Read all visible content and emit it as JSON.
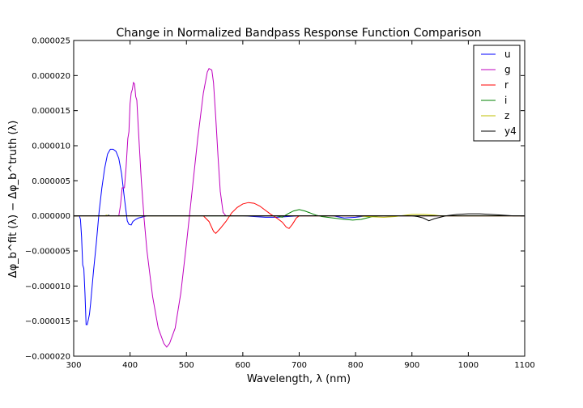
{
  "chart_data": {
    "type": "line",
    "title": "Change in Normalized Bandpass Response Function Comparison",
    "xlabel": "Wavelength, λ (nm)",
    "ylabel": "Δφ_b^fit (λ) − Δφ_b^truth (λ)",
    "xlim": [
      300,
      1100
    ],
    "ylim": [
      -2e-05,
      2.5e-05
    ],
    "x_ticks": [
      300,
      400,
      500,
      600,
      700,
      800,
      900,
      1000,
      1100
    ],
    "x_tick_labels": [
      "300",
      "400",
      "500",
      "600",
      "700",
      "800",
      "900",
      "1000",
      "1100"
    ],
    "y_ticks": [
      -2e-05,
      -1.5e-05,
      -1e-05,
      -5e-06,
      0,
      5e-06,
      1e-05,
      1.5e-05,
      2e-05,
      2.5e-05
    ],
    "y_tick_labels": [
      "−0.000020",
      "−0.000015",
      "−0.000010",
      "−0.000005",
      "0.000000",
      "0.000005",
      "0.000010",
      "0.000015",
      "0.000020",
      "0.000025"
    ],
    "grid": false,
    "legend_position": "top-right",
    "series": [
      {
        "name": "u",
        "color": "#0000ff",
        "points": [
          [
            300,
            0
          ],
          [
            310,
            0
          ],
          [
            312,
            -5e-07
          ],
          [
            314,
            -3e-06
          ],
          [
            316,
            -7e-06
          ],
          [
            318,
            -7.5e-06
          ],
          [
            320,
            -1.1e-05
          ],
          [
            322,
            -1.55e-05
          ],
          [
            324,
            -1.55e-05
          ],
          [
            326,
            -1.48e-05
          ],
          [
            328,
            -1.4e-05
          ],
          [
            330,
            -1.25e-05
          ],
          [
            335,
            -8e-06
          ],
          [
            340,
            -4e-06
          ],
          [
            345,
            5e-07
          ],
          [
            350,
            4e-06
          ],
          [
            355,
            6.8e-06
          ],
          [
            360,
            8.8e-06
          ],
          [
            365,
            9.5e-06
          ],
          [
            370,
            9.5e-06
          ],
          [
            375,
            9.2e-06
          ],
          [
            380,
            8.2e-06
          ],
          [
            385,
            6e-06
          ],
          [
            390,
            2.5e-06
          ],
          [
            395,
            -7e-07
          ],
          [
            398,
            -1.2e-06
          ],
          [
            402,
            -1.3e-06
          ],
          [
            405,
            -8e-07
          ],
          [
            410,
            -5e-07
          ],
          [
            415,
            -3e-07
          ],
          [
            420,
            -2e-07
          ],
          [
            425,
            -1e-07
          ],
          [
            430,
            0
          ],
          [
            600,
            0
          ],
          [
            620,
            -1e-07
          ],
          [
            640,
            -2e-07
          ],
          [
            660,
            -2e-07
          ],
          [
            680,
            -1e-07
          ],
          [
            700,
            0
          ],
          [
            760,
            0
          ],
          [
            780,
            -3e-07
          ],
          [
            800,
            -2e-07
          ],
          [
            820,
            0
          ],
          [
            1100,
            0
          ]
        ]
      },
      {
        "name": "g",
        "color": "#bf00bf",
        "points": [
          [
            300,
            0
          ],
          [
            380,
            0
          ],
          [
            383,
            1.5e-06
          ],
          [
            386,
            4e-06
          ],
          [
            390,
            4e-06
          ],
          [
            393,
            7e-06
          ],
          [
            396,
            1.1e-05
          ],
          [
            398,
            1.2e-05
          ],
          [
            400,
            1.6e-05
          ],
          [
            402,
            1.75e-05
          ],
          [
            404,
            1.8e-05
          ],
          [
            406,
            1.9e-05
          ],
          [
            408,
            1.88e-05
          ],
          [
            410,
            1.7e-05
          ],
          [
            412,
            1.65e-05
          ],
          [
            415,
            1.2e-05
          ],
          [
            420,
            5e-06
          ],
          [
            425,
            -5e-07
          ],
          [
            430,
            -5e-06
          ],
          [
            440,
            -1.15e-05
          ],
          [
            450,
            -1.6e-05
          ],
          [
            460,
            -1.82e-05
          ],
          [
            465,
            -1.87e-05
          ],
          [
            470,
            -1.82e-05
          ],
          [
            480,
            -1.6e-05
          ],
          [
            490,
            -1.1e-05
          ],
          [
            500,
            -4e-06
          ],
          [
            510,
            3.5e-06
          ],
          [
            520,
            1.1e-05
          ],
          [
            530,
            1.75e-05
          ],
          [
            537,
            2.05e-05
          ],
          [
            540,
            2.1e-05
          ],
          [
            545,
            2.08e-05
          ],
          [
            548,
            1.9e-05
          ],
          [
            552,
            1.4e-05
          ],
          [
            556,
            8.5e-06
          ],
          [
            560,
            3.5e-06
          ],
          [
            565,
            5e-07
          ],
          [
            570,
            0
          ],
          [
            1100,
            0
          ]
        ]
      },
      {
        "name": "r",
        "color": "#ff0000",
        "points": [
          [
            300,
            0
          ],
          [
            530,
            0
          ],
          [
            540,
            -8e-07
          ],
          [
            548,
            -2.2e-06
          ],
          [
            552,
            -2.5e-06
          ],
          [
            560,
            -1.8e-06
          ],
          [
            570,
            -8e-07
          ],
          [
            580,
            4e-07
          ],
          [
            590,
            1.2e-06
          ],
          [
            600,
            1.7e-06
          ],
          [
            610,
            1.9e-06
          ],
          [
            620,
            1.8e-06
          ],
          [
            630,
            1.4e-06
          ],
          [
            640,
            8e-07
          ],
          [
            650,
            2e-07
          ],
          [
            660,
            -3e-07
          ],
          [
            670,
            -9e-07
          ],
          [
            677,
            -1.6e-06
          ],
          [
            682,
            -1.8e-06
          ],
          [
            688,
            -1.2e-06
          ],
          [
            695,
            -3e-07
          ],
          [
            700,
            0
          ],
          [
            1100,
            0
          ]
        ]
      },
      {
        "name": "i",
        "color": "#008000",
        "points": [
          [
            300,
            0
          ],
          [
            660,
            0
          ],
          [
            670,
            -2e-07
          ],
          [
            680,
            3e-07
          ],
          [
            690,
            7e-07
          ],
          [
            700,
            9e-07
          ],
          [
            710,
            7e-07
          ],
          [
            720,
            4e-07
          ],
          [
            730,
            1e-07
          ],
          [
            740,
            -1e-07
          ],
          [
            760,
            -3e-07
          ],
          [
            780,
            -5e-07
          ],
          [
            795,
            -6e-07
          ],
          [
            810,
            -5e-07
          ],
          [
            820,
            -3e-07
          ],
          [
            830,
            -1e-07
          ],
          [
            840,
            0
          ],
          [
            1100,
            0
          ]
        ]
      },
      {
        "name": "z",
        "color": "#bfbf00",
        "points": [
          [
            300,
            0
          ],
          [
            355,
            0
          ],
          [
            358,
            1e-07
          ],
          [
            362,
            0
          ],
          [
            800,
            0
          ],
          [
            820,
            -1e-07
          ],
          [
            850,
            -2e-07
          ],
          [
            870,
            -1e-07
          ],
          [
            890,
            1e-07
          ],
          [
            900,
            2e-07
          ],
          [
            920,
            2e-07
          ],
          [
            940,
            1e-07
          ],
          [
            950,
            0
          ],
          [
            1100,
            0
          ]
        ]
      },
      {
        "name": "y4",
        "color": "#000000",
        "points": [
          [
            300,
            0
          ],
          [
            360,
            0
          ],
          [
            362,
            1e-07
          ],
          [
            364,
            0
          ],
          [
            900,
            0
          ],
          [
            910,
            -1e-07
          ],
          [
            920,
            -3e-07
          ],
          [
            930,
            -7e-07
          ],
          [
            940,
            -4e-07
          ],
          [
            950,
            -2e-07
          ],
          [
            960,
            0
          ],
          [
            980,
            2e-07
          ],
          [
            1000,
            3e-07
          ],
          [
            1020,
            3e-07
          ],
          [
            1040,
            2e-07
          ],
          [
            1060,
            1e-07
          ],
          [
            1080,
            0
          ],
          [
            1100,
            0
          ]
        ]
      }
    ]
  }
}
